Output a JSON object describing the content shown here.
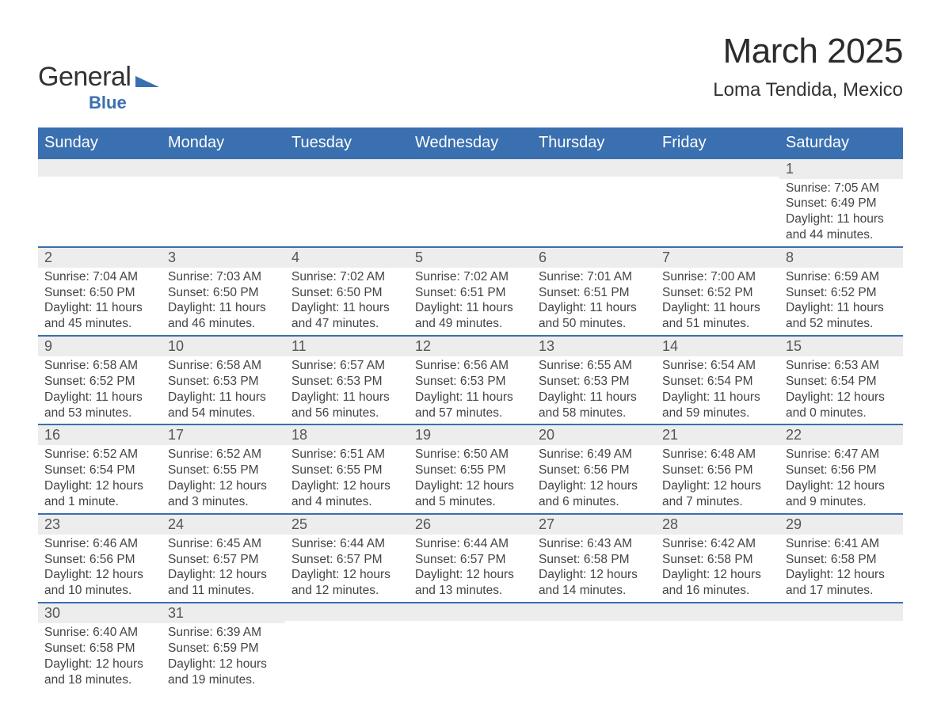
{
  "brand": {
    "line1a": "General",
    "line1b": "",
    "sub": "Blue",
    "tri_color": "#3a6fb0"
  },
  "title": "March 2025",
  "location": "Loma Tendida, Mexico",
  "colors": {
    "header_bg": "#3a6fb0",
    "header_text": "#ffffff",
    "daynum_bg": "#ededed",
    "daynum_text": "#555555",
    "body_text": "#444444",
    "rule": "#3a6fb0"
  },
  "typography": {
    "title_fontsize": 44,
    "location_fontsize": 24,
    "dow_fontsize": 20,
    "daynum_fontsize": 18,
    "cell_fontsize": 15.5
  },
  "days_of_week": [
    "Sunday",
    "Monday",
    "Tuesday",
    "Wednesday",
    "Thursday",
    "Friday",
    "Saturday"
  ],
  "weeks": [
    [
      {
        "n": "",
        "sunrise": "",
        "sunset": "",
        "day": ""
      },
      {
        "n": "",
        "sunrise": "",
        "sunset": "",
        "day": ""
      },
      {
        "n": "",
        "sunrise": "",
        "sunset": "",
        "day": ""
      },
      {
        "n": "",
        "sunrise": "",
        "sunset": "",
        "day": ""
      },
      {
        "n": "",
        "sunrise": "",
        "sunset": "",
        "day": ""
      },
      {
        "n": "",
        "sunrise": "",
        "sunset": "",
        "day": ""
      },
      {
        "n": "1",
        "sunrise": "Sunrise: 7:05 AM",
        "sunset": "Sunset: 6:49 PM",
        "day": "Daylight: 11 hours and 44 minutes."
      }
    ],
    [
      {
        "n": "2",
        "sunrise": "Sunrise: 7:04 AM",
        "sunset": "Sunset: 6:50 PM",
        "day": "Daylight: 11 hours and 45 minutes."
      },
      {
        "n": "3",
        "sunrise": "Sunrise: 7:03 AM",
        "sunset": "Sunset: 6:50 PM",
        "day": "Daylight: 11 hours and 46 minutes."
      },
      {
        "n": "4",
        "sunrise": "Sunrise: 7:02 AM",
        "sunset": "Sunset: 6:50 PM",
        "day": "Daylight: 11 hours and 47 minutes."
      },
      {
        "n": "5",
        "sunrise": "Sunrise: 7:02 AM",
        "sunset": "Sunset: 6:51 PM",
        "day": "Daylight: 11 hours and 49 minutes."
      },
      {
        "n": "6",
        "sunrise": "Sunrise: 7:01 AM",
        "sunset": "Sunset: 6:51 PM",
        "day": "Daylight: 11 hours and 50 minutes."
      },
      {
        "n": "7",
        "sunrise": "Sunrise: 7:00 AM",
        "sunset": "Sunset: 6:52 PM",
        "day": "Daylight: 11 hours and 51 minutes."
      },
      {
        "n": "8",
        "sunrise": "Sunrise: 6:59 AM",
        "sunset": "Sunset: 6:52 PM",
        "day": "Daylight: 11 hours and 52 minutes."
      }
    ],
    [
      {
        "n": "9",
        "sunrise": "Sunrise: 6:58 AM",
        "sunset": "Sunset: 6:52 PM",
        "day": "Daylight: 11 hours and 53 minutes."
      },
      {
        "n": "10",
        "sunrise": "Sunrise: 6:58 AM",
        "sunset": "Sunset: 6:53 PM",
        "day": "Daylight: 11 hours and 54 minutes."
      },
      {
        "n": "11",
        "sunrise": "Sunrise: 6:57 AM",
        "sunset": "Sunset: 6:53 PM",
        "day": "Daylight: 11 hours and 56 minutes."
      },
      {
        "n": "12",
        "sunrise": "Sunrise: 6:56 AM",
        "sunset": "Sunset: 6:53 PM",
        "day": "Daylight: 11 hours and 57 minutes."
      },
      {
        "n": "13",
        "sunrise": "Sunrise: 6:55 AM",
        "sunset": "Sunset: 6:53 PM",
        "day": "Daylight: 11 hours and 58 minutes."
      },
      {
        "n": "14",
        "sunrise": "Sunrise: 6:54 AM",
        "sunset": "Sunset: 6:54 PM",
        "day": "Daylight: 11 hours and 59 minutes."
      },
      {
        "n": "15",
        "sunrise": "Sunrise: 6:53 AM",
        "sunset": "Sunset: 6:54 PM",
        "day": "Daylight: 12 hours and 0 minutes."
      }
    ],
    [
      {
        "n": "16",
        "sunrise": "Sunrise: 6:52 AM",
        "sunset": "Sunset: 6:54 PM",
        "day": "Daylight: 12 hours and 1 minute."
      },
      {
        "n": "17",
        "sunrise": "Sunrise: 6:52 AM",
        "sunset": "Sunset: 6:55 PM",
        "day": "Daylight: 12 hours and 3 minutes."
      },
      {
        "n": "18",
        "sunrise": "Sunrise: 6:51 AM",
        "sunset": "Sunset: 6:55 PM",
        "day": "Daylight: 12 hours and 4 minutes."
      },
      {
        "n": "19",
        "sunrise": "Sunrise: 6:50 AM",
        "sunset": "Sunset: 6:55 PM",
        "day": "Daylight: 12 hours and 5 minutes."
      },
      {
        "n": "20",
        "sunrise": "Sunrise: 6:49 AM",
        "sunset": "Sunset: 6:56 PM",
        "day": "Daylight: 12 hours and 6 minutes."
      },
      {
        "n": "21",
        "sunrise": "Sunrise: 6:48 AM",
        "sunset": "Sunset: 6:56 PM",
        "day": "Daylight: 12 hours and 7 minutes."
      },
      {
        "n": "22",
        "sunrise": "Sunrise: 6:47 AM",
        "sunset": "Sunset: 6:56 PM",
        "day": "Daylight: 12 hours and 9 minutes."
      }
    ],
    [
      {
        "n": "23",
        "sunrise": "Sunrise: 6:46 AM",
        "sunset": "Sunset: 6:56 PM",
        "day": "Daylight: 12 hours and 10 minutes."
      },
      {
        "n": "24",
        "sunrise": "Sunrise: 6:45 AM",
        "sunset": "Sunset: 6:57 PM",
        "day": "Daylight: 12 hours and 11 minutes."
      },
      {
        "n": "25",
        "sunrise": "Sunrise: 6:44 AM",
        "sunset": "Sunset: 6:57 PM",
        "day": "Daylight: 12 hours and 12 minutes."
      },
      {
        "n": "26",
        "sunrise": "Sunrise: 6:44 AM",
        "sunset": "Sunset: 6:57 PM",
        "day": "Daylight: 12 hours and 13 minutes."
      },
      {
        "n": "27",
        "sunrise": "Sunrise: 6:43 AM",
        "sunset": "Sunset: 6:58 PM",
        "day": "Daylight: 12 hours and 14 minutes."
      },
      {
        "n": "28",
        "sunrise": "Sunrise: 6:42 AM",
        "sunset": "Sunset: 6:58 PM",
        "day": "Daylight: 12 hours and 16 minutes."
      },
      {
        "n": "29",
        "sunrise": "Sunrise: 6:41 AM",
        "sunset": "Sunset: 6:58 PM",
        "day": "Daylight: 12 hours and 17 minutes."
      }
    ],
    [
      {
        "n": "30",
        "sunrise": "Sunrise: 6:40 AM",
        "sunset": "Sunset: 6:58 PM",
        "day": "Daylight: 12 hours and 18 minutes."
      },
      {
        "n": "31",
        "sunrise": "Sunrise: 6:39 AM",
        "sunset": "Sunset: 6:59 PM",
        "day": "Daylight: 12 hours and 19 minutes."
      },
      {
        "n": "",
        "sunrise": "",
        "sunset": "",
        "day": ""
      },
      {
        "n": "",
        "sunrise": "",
        "sunset": "",
        "day": ""
      },
      {
        "n": "",
        "sunrise": "",
        "sunset": "",
        "day": ""
      },
      {
        "n": "",
        "sunrise": "",
        "sunset": "",
        "day": ""
      },
      {
        "n": "",
        "sunrise": "",
        "sunset": "",
        "day": ""
      }
    ]
  ]
}
